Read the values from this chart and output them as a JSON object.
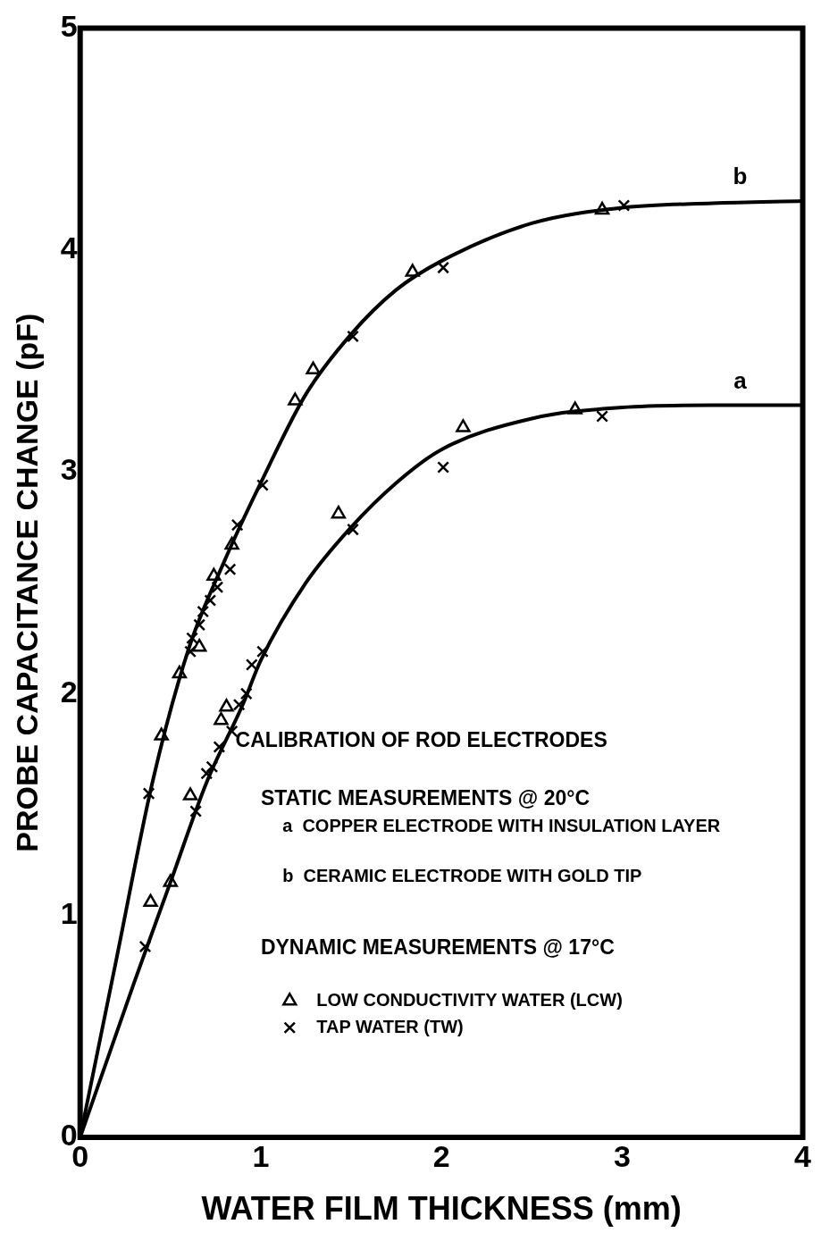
{
  "chart_data": {
    "type": "scatter",
    "xlabel": "WATER FILM THICKNESS (mm)",
    "ylabel": "PROBE CAPACITANCE CHANGE (pF)",
    "xlim": [
      0,
      4
    ],
    "xticks": [
      0,
      1,
      2,
      3,
      4
    ],
    "ylim": [
      0,
      5
    ],
    "yticks": [
      0,
      1,
      2,
      3,
      4,
      5
    ],
    "grid": false,
    "legend": "bottom right",
    "annotations": [
      "CALIBRATION OF ROD ELECTRODES",
      "STATIC MEASUREMENTS @ 20°C",
      "a  COPPER ELECTRODE WITH INSULATION LAYER",
      "b  CERAMIC ELECTRODE WITH GOLD TIP",
      "DYNAMIC MEASUREMENTS @ 17°C"
    ],
    "series": [
      {
        "name": "b",
        "type": "line",
        "color": "#000000",
        "marker": "none",
        "x": [
          0,
          0.2,
          0.4,
          0.6,
          0.8,
          1,
          1.25,
          1.5,
          1.75,
          2,
          2.5,
          3,
          3.5,
          4
        ],
        "values": [
          0,
          0.8,
          1.6,
          2.2,
          2.6,
          2.95,
          3.35,
          3.62,
          3.82,
          3.95,
          4.12,
          4.19,
          4.21,
          4.22
        ]
      },
      {
        "name": "a",
        "type": "line",
        "color": "#000000",
        "marker": "none",
        "x": [
          0,
          0.3,
          0.5,
          0.7,
          0.9,
          1,
          1.25,
          1.5,
          1.75,
          2,
          2.5,
          3,
          3.5,
          4
        ],
        "values": [
          0,
          0.7,
          1.15,
          1.6,
          1.95,
          2.15,
          2.5,
          2.75,
          2.95,
          3.1,
          3.24,
          3.29,
          3.3,
          3.3
        ]
      },
      {
        "name": "LOW CONDUCTIVITY WATER (LCW)",
        "color": "#000000",
        "marker": "triangle",
        "x": [
          0.39,
          0.5,
          0.45,
          0.55,
          0.66,
          0.61,
          0.78,
          0.81,
          0.74,
          0.84,
          1.19,
          1.29,
          1.43,
          1.84,
          2.12,
          2.74,
          2.89
        ],
        "values": [
          1.06,
          1.15,
          1.81,
          2.09,
          2.21,
          1.54,
          1.88,
          1.94,
          2.53,
          2.67,
          3.32,
          3.46,
          2.81,
          3.9,
          3.2,
          3.28,
          4.18
        ]
      },
      {
        "name": "TAP WATER (TW)",
        "color": "#000000",
        "marker": "cross",
        "x": [
          0.36,
          0.38,
          0.64,
          0.7,
          0.73,
          0.77,
          0.84,
          0.88,
          0.92,
          0.95,
          1.01,
          1.51,
          2.01,
          2.89,
          0.61,
          0.62,
          0.66,
          0.68,
          0.72,
          0.76,
          0.83,
          0.87,
          1.01,
          1.51,
          2.01,
          3.01
        ],
        "values": [
          0.86,
          1.55,
          1.47,
          1.64,
          1.67,
          1.76,
          1.83,
          1.95,
          2,
          2.13,
          2.19,
          2.74,
          3.02,
          3.25,
          2.19,
          2.25,
          2.31,
          2.37,
          2.42,
          2.48,
          2.56,
          2.76,
          2.94,
          3.61,
          3.92,
          4.2
        ]
      }
    ]
  }
}
